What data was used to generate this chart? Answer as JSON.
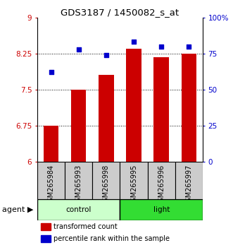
{
  "title": "GDS3187 / 1450082_s_at",
  "samples": [
    "GSM265984",
    "GSM265993",
    "GSM265998",
    "GSM265995",
    "GSM265996",
    "GSM265997"
  ],
  "bar_values": [
    6.75,
    7.5,
    7.8,
    8.35,
    8.18,
    8.25
  ],
  "dot_values": [
    62,
    78,
    74,
    83,
    80,
    80
  ],
  "bar_color": "#cc0000",
  "dot_color": "#0000cc",
  "bar_bottom": 6.0,
  "ylim_left": [
    6.0,
    9.0
  ],
  "ylim_right": [
    0,
    100
  ],
  "yticks_left": [
    6,
    6.75,
    7.5,
    8.25,
    9
  ],
  "yticks_right": [
    0,
    25,
    50,
    75,
    100
  ],
  "ytick_labels_left": [
    "6",
    "6.75",
    "7.5",
    "8.25",
    "9"
  ],
  "ytick_labels_right": [
    "0",
    "25",
    "50",
    "75",
    "100%"
  ],
  "hlines": [
    6.75,
    7.5,
    8.25
  ],
  "agent_label": "agent",
  "legend_items": [
    "transformed count",
    "percentile rank within the sample"
  ],
  "legend_colors": [
    "#cc0000",
    "#0000cc"
  ],
  "bar_width": 0.55,
  "control_color": "#ccffcc",
  "light_color": "#33dd33",
  "tick_color_left": "#cc0000",
  "tick_color_right": "#0000cc",
  "sample_box_color": "#cccccc",
  "title_fontsize": 9.5,
  "tick_fontsize": 7.5,
  "label_fontsize": 7,
  "legend_fontsize": 7
}
